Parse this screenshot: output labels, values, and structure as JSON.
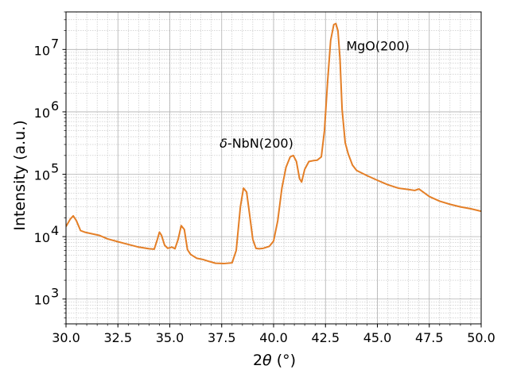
{
  "chart_data": {
    "type": "line",
    "title": "",
    "xlabel": "2θ (°)",
    "ylabel": "Intensity (a.u.)",
    "xlim": [
      30.0,
      50.0
    ],
    "ylim": [
      400,
      40000000
    ],
    "yscale": "log",
    "grid": true,
    "minor_grid": true,
    "x_ticks": [
      {
        "value": 30.0,
        "label": "30.0"
      },
      {
        "value": 32.5,
        "label": "32.5"
      },
      {
        "value": 35.0,
        "label": "35.0"
      },
      {
        "value": 37.5,
        "label": "37.5"
      },
      {
        "value": 40.0,
        "label": "40.0"
      },
      {
        "value": 42.5,
        "label": "42.5"
      },
      {
        "value": 45.0,
        "label": "45.0"
      },
      {
        "value": 47.5,
        "label": "47.5"
      },
      {
        "value": 50.0,
        "label": "50.0"
      }
    ],
    "y_ticks": [
      {
        "value": 1000,
        "base": "10",
        "exp": "3"
      },
      {
        "value": 10000,
        "base": "10",
        "exp": "4"
      },
      {
        "value": 100000,
        "base": "10",
        "exp": "5"
      },
      {
        "value": 1000000,
        "base": "10",
        "exp": "6"
      },
      {
        "value": 10000000,
        "base": "10",
        "exp": "7"
      }
    ],
    "series": [
      {
        "color": "#e47f27",
        "x": [
          30.0,
          30.2,
          30.35,
          30.5,
          30.7,
          30.9,
          31.2,
          31.6,
          32.0,
          32.5,
          33.0,
          33.5,
          34.0,
          34.25,
          34.4,
          34.5,
          34.6,
          34.75,
          34.9,
          35.1,
          35.25,
          35.4,
          35.55,
          35.7,
          35.85,
          36.0,
          36.3,
          36.6,
          36.9,
          37.2,
          37.6,
          38.0,
          38.2,
          38.4,
          38.55,
          38.7,
          38.85,
          39.0,
          39.15,
          39.3,
          39.5,
          39.8,
          40.0,
          40.2,
          40.4,
          40.6,
          40.8,
          40.95,
          41.1,
          41.25,
          41.35,
          41.5,
          41.7,
          41.9,
          42.1,
          42.3,
          42.45,
          42.6,
          42.75,
          42.9,
          43.0,
          43.1,
          43.2,
          43.3,
          43.45,
          43.6,
          43.8,
          44.0,
          44.5,
          45.0,
          45.5,
          46.0,
          46.5,
          46.8,
          47.0,
          47.2,
          47.5,
          48.0,
          48.5,
          49.0,
          49.5,
          50.0
        ],
        "y": [
          14500,
          19000,
          21500,
          18000,
          12500,
          11800,
          11200,
          10500,
          9200,
          8300,
          7500,
          6800,
          6400,
          6300,
          9000,
          11800,
          10500,
          7300,
          6500,
          6800,
          6400,
          9000,
          15000,
          13000,
          6200,
          5200,
          4500,
          4300,
          4000,
          3750,
          3700,
          3800,
          6000,
          30000,
          60000,
          52000,
          22000,
          9000,
          6500,
          6400,
          6500,
          7000,
          8500,
          18000,
          60000,
          130000,
          190000,
          200000,
          160000,
          85000,
          75000,
          120000,
          160000,
          165000,
          168000,
          190000,
          500000,
          3000000,
          14000000,
          25000000,
          26000000,
          20000000,
          7000000,
          1100000,
          320000,
          210000,
          140000,
          115000,
          95000,
          80000,
          68000,
          60000,
          57000,
          55000,
          58000,
          52000,
          44000,
          37000,
          33000,
          30000,
          28000,
          25500
        ]
      }
    ],
    "annotations": [
      {
        "id": "nbn",
        "text": "δ-NbN(200)",
        "x": 37.4,
        "y": 320000
      },
      {
        "id": "mgo",
        "text": "MgO(200)",
        "x": 43.5,
        "y": 11500000
      }
    ]
  }
}
